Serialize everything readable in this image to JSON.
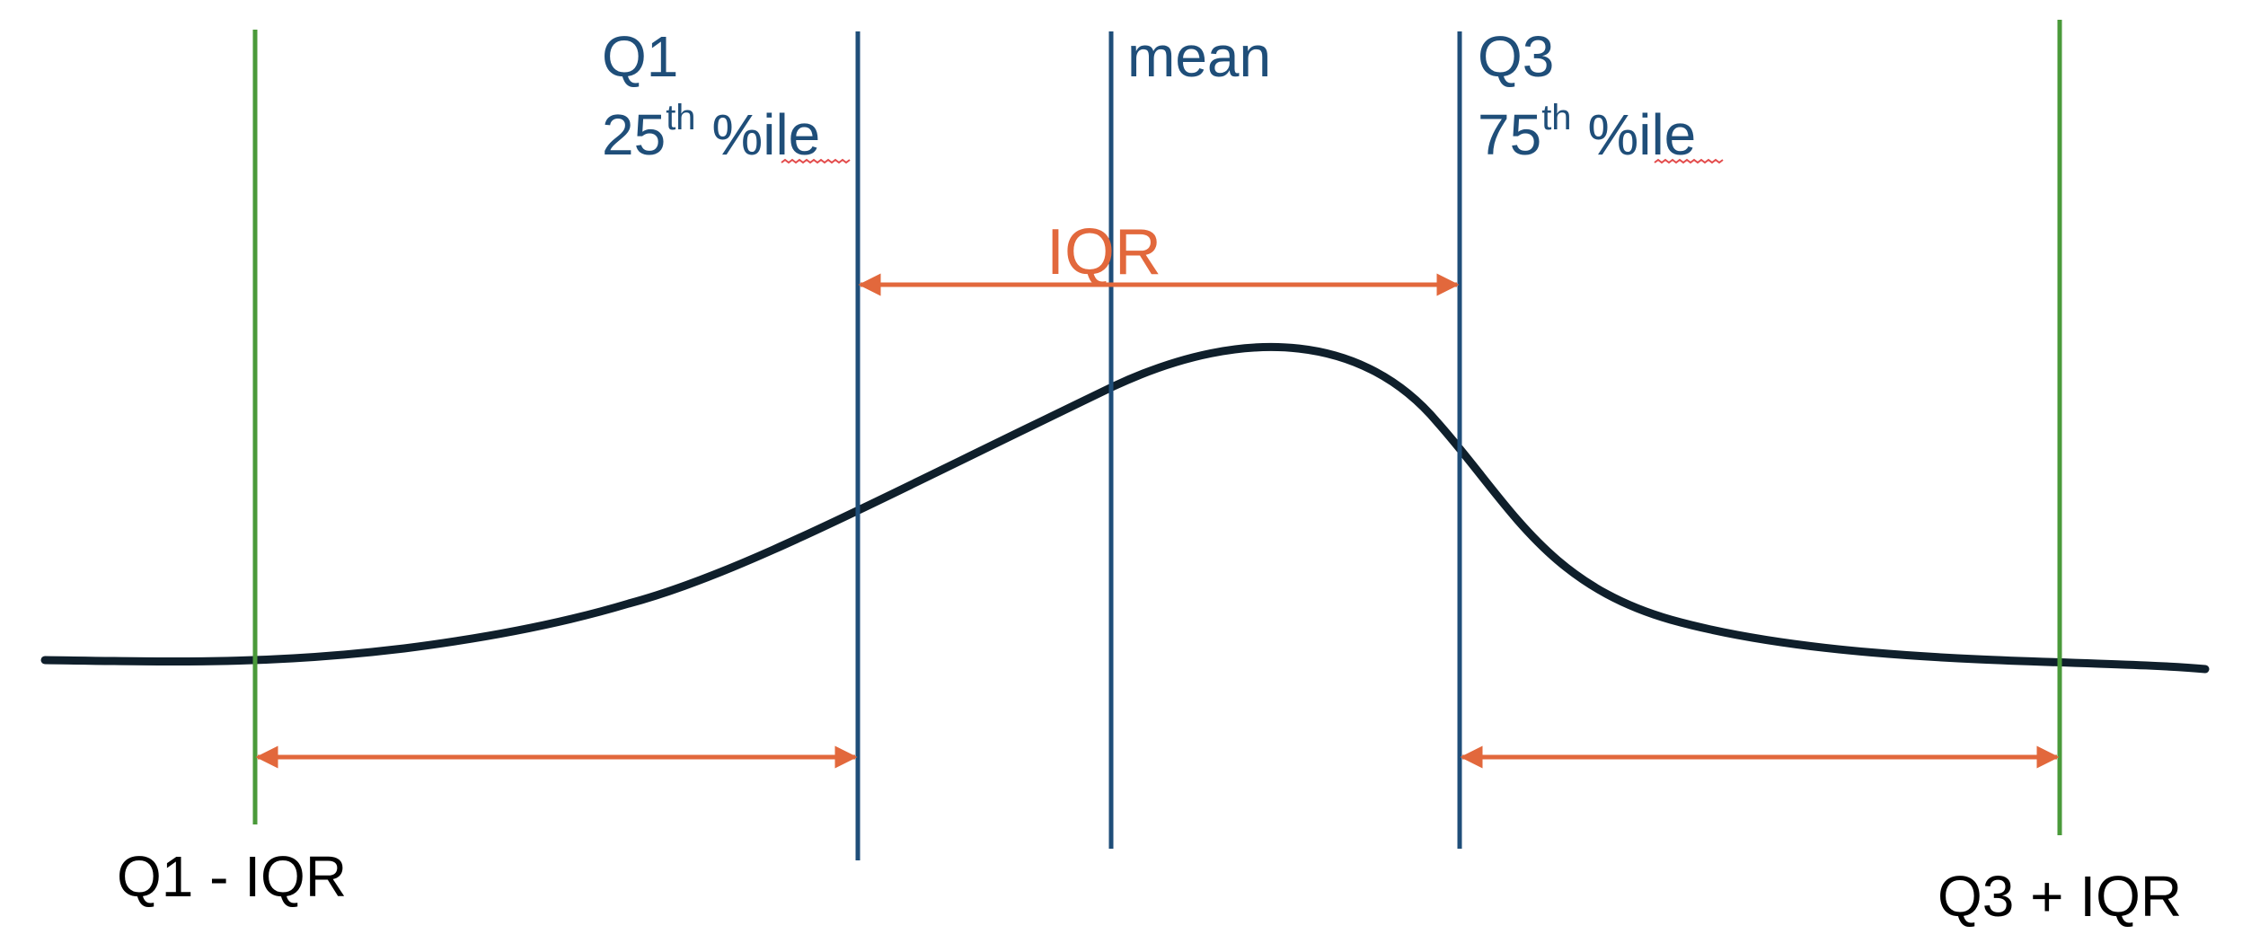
{
  "colors": {
    "outer_bound_line": "#4a9a3a",
    "quartile_line": "#1f4e79",
    "mean_line": "#1f4e79",
    "iqr_arrow": "#e2683c",
    "curve": "#0f1f2b",
    "spellcheck_underline": "#e34b4b"
  },
  "labels": {
    "q1": {
      "name": "Q1",
      "pct_number": "25",
      "pct_sup": "th",
      "pct_suffix": " %ile"
    },
    "mean": "mean",
    "q3": {
      "name": "Q3",
      "pct_number": "75",
      "pct_sup": "th",
      "pct_suffix": " %ile"
    },
    "iqr": "IQR",
    "lower_bound": "Q1 - IQR",
    "upper_bound": "Q3 + IQR"
  }
}
